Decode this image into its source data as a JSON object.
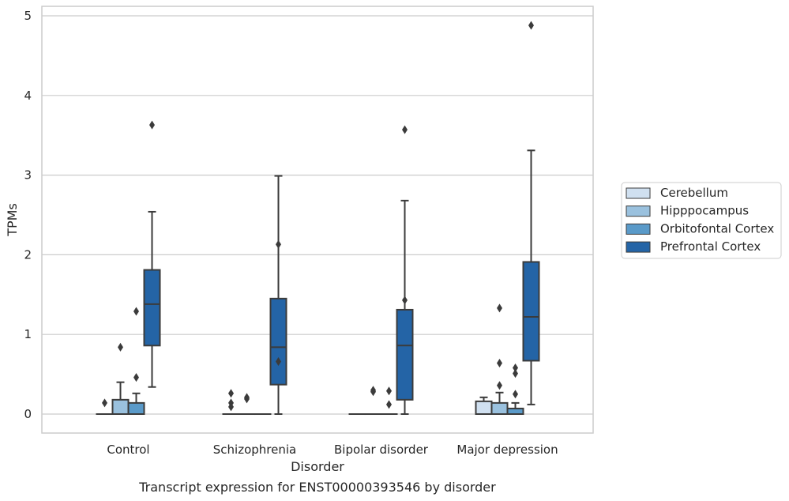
{
  "chart_data": {
    "type": "box",
    "title": "Transcript expression for ENST00000393546 by disorder",
    "xlabel": "Disorder",
    "ylabel": "TPMs",
    "ylim": [
      -0.24,
      5.14
    ],
    "yticks": [
      0,
      1,
      2,
      3,
      4,
      5
    ],
    "grid": true,
    "legend_position": "right",
    "categories": [
      "Control",
      "Schizophrenia",
      "Bipolar disorder",
      "Major depression"
    ],
    "series": [
      {
        "name": "Cerebellum",
        "color": "#d0e0f0",
        "boxes": [
          {
            "whislo": 0,
            "q1": 0,
            "med": 0,
            "q3": 0,
            "whishi": 0,
            "fliers": [
              0.14
            ]
          },
          {
            "whislo": 0,
            "q1": 0,
            "med": 0,
            "q3": 0,
            "whishi": 0,
            "fliers": [
              0.26,
              0.14,
              0.09
            ]
          },
          {
            "whislo": 0,
            "q1": 0,
            "med": 0,
            "q3": 0,
            "whishi": 0,
            "fliers": []
          },
          {
            "whislo": 0,
            "q1": 0,
            "med": 0,
            "q3": 0.16,
            "whishi": 0.21,
            "fliers": []
          }
        ]
      },
      {
        "name": "Hipppocampus",
        "color": "#9ac1de",
        "boxes": [
          {
            "whislo": 0,
            "q1": 0,
            "med": 0,
            "q3": 0.18,
            "whishi": 0.4,
            "fliers": [
              0.84
            ]
          },
          {
            "whislo": 0,
            "q1": 0,
            "med": 0,
            "q3": 0,
            "whishi": 0,
            "fliers": [
              0.21,
              0.19
            ]
          },
          {
            "whislo": 0,
            "q1": 0,
            "med": 0,
            "q3": 0,
            "whishi": 0,
            "fliers": [
              0.3,
              0.28
            ]
          },
          {
            "whislo": 0,
            "q1": 0,
            "med": 0,
            "q3": 0.14,
            "whishi": 0.27,
            "fliers": [
              1.33,
              0.64,
              0.36
            ]
          }
        ]
      },
      {
        "name": "Orbitofontal Cortex",
        "color": "#5a9ac9",
        "boxes": [
          {
            "whislo": 0,
            "q1": 0,
            "med": 0,
            "q3": 0.14,
            "whishi": 0.26,
            "fliers": [
              1.29,
              0.46
            ]
          },
          {
            "whislo": 0,
            "q1": 0,
            "med": 0,
            "q3": 0,
            "whishi": 0,
            "fliers": []
          },
          {
            "whislo": 0,
            "q1": 0,
            "med": 0,
            "q3": 0,
            "whishi": 0,
            "fliers": [
              0.29,
              0.12
            ]
          },
          {
            "whislo": 0,
            "q1": 0,
            "med": 0,
            "q3": 0.07,
            "whishi": 0.14,
            "fliers": [
              0.58,
              0.51,
              0.25
            ]
          }
        ]
      },
      {
        "name": "Prefrontal Cortex",
        "color": "#2464a6",
        "boxes": [
          {
            "whislo": 0.34,
            "q1": 0.86,
            "med": 1.38,
            "q3": 1.81,
            "whishi": 2.54,
            "fliers": [
              3.63
            ]
          },
          {
            "whislo": 0,
            "q1": 0.37,
            "med": 0.84,
            "q3": 1.45,
            "whishi": 2.99,
            "fliers": [
              2.13,
              0.66
            ]
          },
          {
            "whislo": 0,
            "q1": 0.18,
            "med": 0.86,
            "q3": 1.31,
            "whishi": 2.68,
            "fliers": [
              3.57,
              1.43
            ]
          },
          {
            "whislo": 0.12,
            "q1": 0.67,
            "med": 1.22,
            "q3": 1.91,
            "whishi": 3.31,
            "fliers": [
              4.88
            ]
          }
        ]
      }
    ]
  }
}
